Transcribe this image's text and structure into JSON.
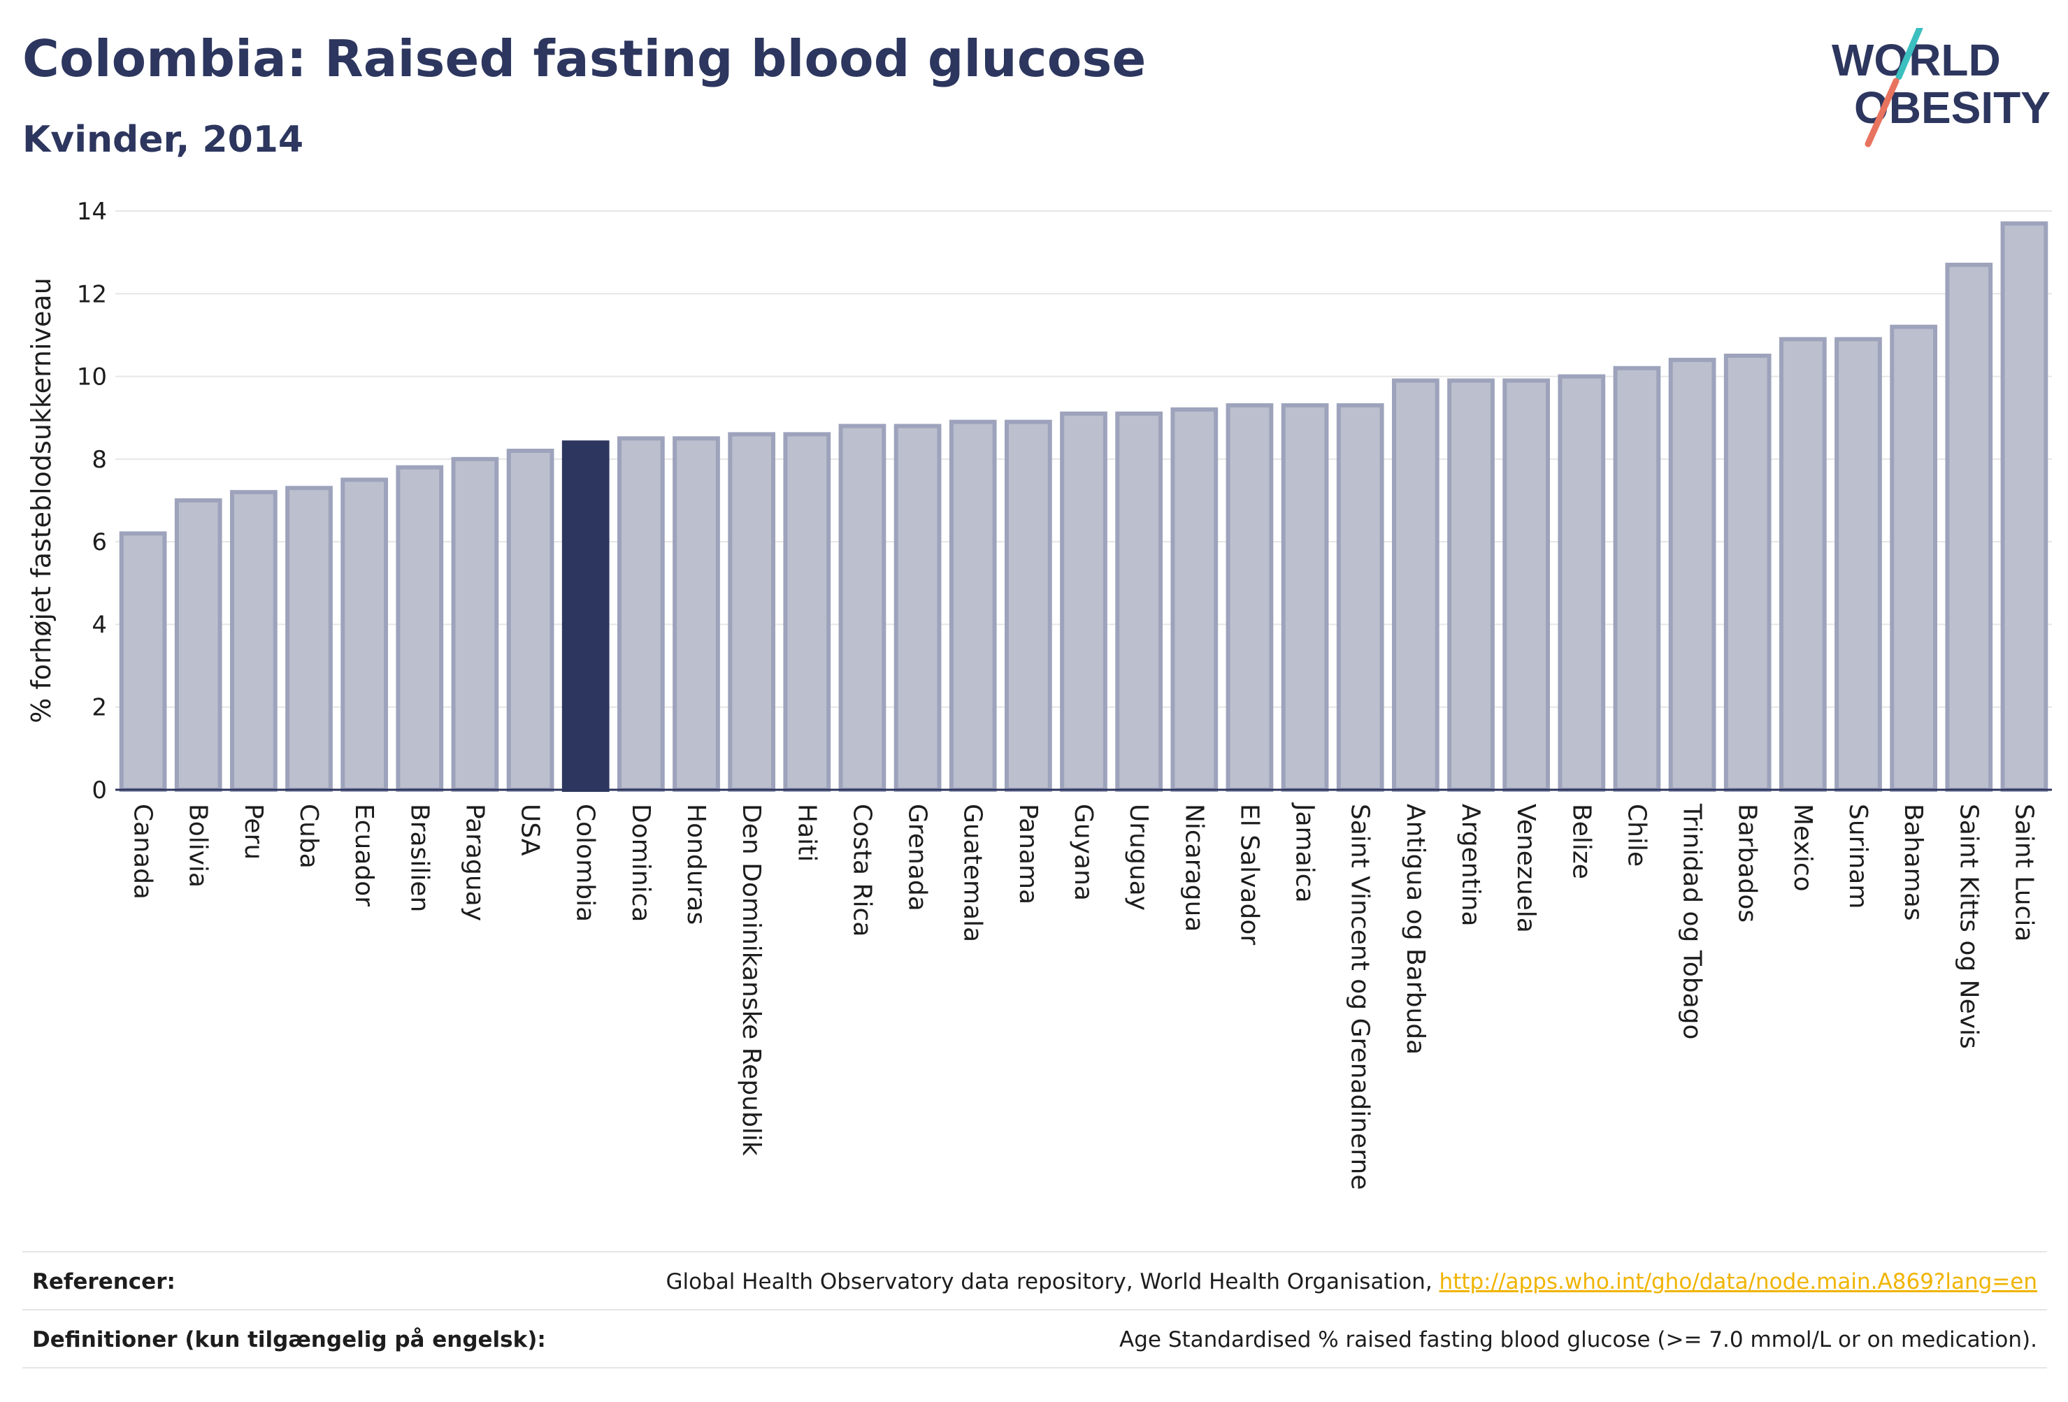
{
  "header": {
    "title": "Colombia: Raised fasting blood glucose",
    "subtitle": "Kvinder, 2014"
  },
  "logo": {
    "line1": "WORLD",
    "line2": "OBESITY",
    "colors": {
      "text": "#2c365e",
      "slash_teal": "#3bbfbf",
      "slash_coral": "#e8735e"
    }
  },
  "chart_data": {
    "type": "bar",
    "ylabel": "% forhøjet fasteblodsukkerniveau",
    "xlabel": "",
    "ylim": [
      0,
      14
    ],
    "yticks": [
      0,
      2,
      4,
      6,
      8,
      10,
      12,
      14
    ],
    "grid": true,
    "highlight": "Colombia",
    "colors": {
      "bar": "#bcbfcd",
      "bar_border": "#9ea3bc",
      "highlight": "#2c365e",
      "grid": "#e6e6e6",
      "axis": "#2c365e"
    },
    "categories": [
      "Canada",
      "Bolivia",
      "Peru",
      "Cuba",
      "Ecuador",
      "Brasilien",
      "Paraguay",
      "USA",
      "Colombia",
      "Dominica",
      "Honduras",
      "Den Dominikanske Republik",
      "Haiti",
      "Costa Rica",
      "Grenada",
      "Guatemala",
      "Panama",
      "Guyana",
      "Uruguay",
      "Nicaragua",
      "El Salvador",
      "Jamaica",
      "Saint Vincent og Grenadinerne",
      "Antigua og Barbuda",
      "Argentina",
      "Venezuela",
      "Belize",
      "Chile",
      "Trinidad og Tobago",
      "Barbados",
      "Mexico",
      "Surinam",
      "Bahamas",
      "Saint Kitts og Nevis",
      "Saint Lucia"
    ],
    "values": [
      6.2,
      7.0,
      7.2,
      7.3,
      7.5,
      7.8,
      8.0,
      8.2,
      8.4,
      8.5,
      8.5,
      8.6,
      8.6,
      8.8,
      8.8,
      8.9,
      8.9,
      9.1,
      9.1,
      9.2,
      9.3,
      9.3,
      9.3,
      9.9,
      9.9,
      9.9,
      10.0,
      10.2,
      10.4,
      10.5,
      10.9,
      10.9,
      11.2,
      12.7,
      13.7
    ]
  },
  "footer": {
    "references_label": "Referencer:",
    "references_text": "Global Health Observatory data repository, World Health Organisation, ",
    "references_link": "http://apps.who.int/gho/data/node.main.A869?lang=en",
    "definitions_label": "Definitioner (kun tilgængelig på engelsk):",
    "definitions_text": "Age Standardised % raised fasting blood glucose (>= 7.0 mmol/L or on medication)."
  }
}
